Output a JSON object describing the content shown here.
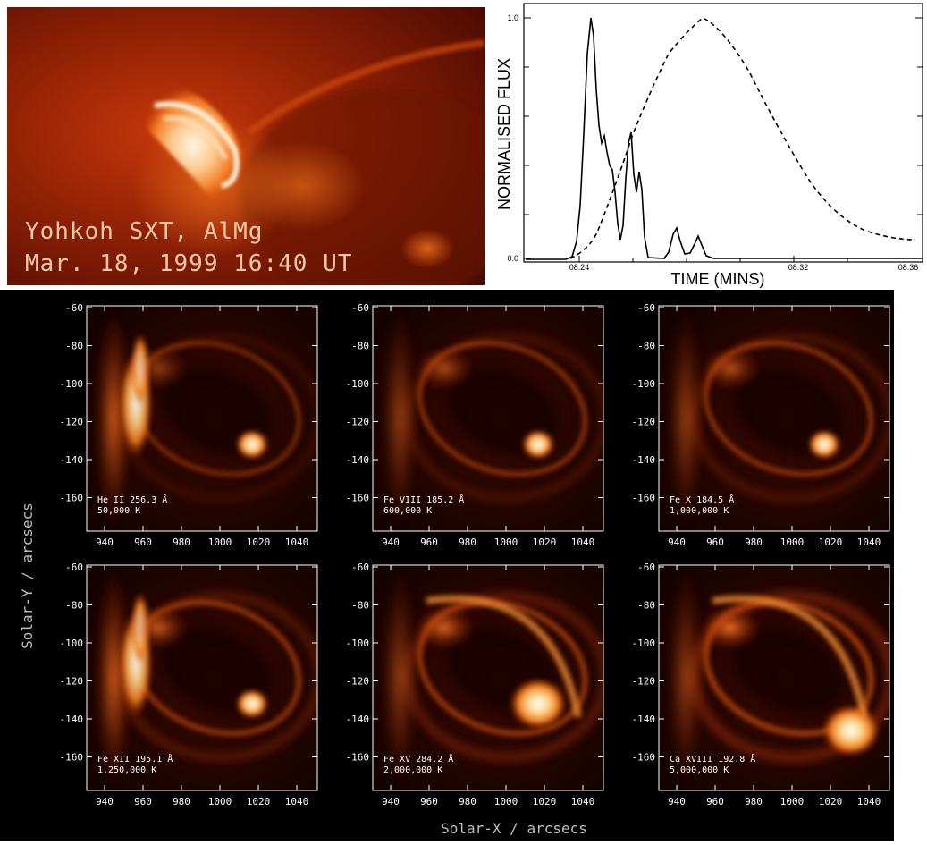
{
  "sxt": {
    "line1": "Yohkoh SXT, AlMg",
    "line2": "Mar. 18, 1999 16:40 UT"
  },
  "lightcurve": {
    "ylabel": "NORMALISED FLUX",
    "xlabel": "TIME (MINS)",
    "yticks": [
      "1.0",
      "0.0"
    ],
    "xticks": [
      "08:24",
      "08:32",
      "08:36"
    ]
  },
  "cds": {
    "ylabel": "Solar-Y / arcsecs",
    "xlabel": "Solar-X / arcsecs",
    "yticks": [
      "-60",
      "-80",
      "-100",
      "-120",
      "-140",
      "-160"
    ],
    "xticks": [
      "940",
      "960",
      "980",
      "1000",
      "1020",
      "1040"
    ],
    "panels": [
      {
        "line": "He II 256.3 Å",
        "temp": "50,000 K"
      },
      {
        "line": "Fe VIII 185.2 Å",
        "temp": "600,000 K"
      },
      {
        "line": "Fe X 184.5 Å",
        "temp": "1,000,000 K"
      },
      {
        "line": "Fe XII 195.1 Å",
        "temp": "1,250,000 K"
      },
      {
        "line": "Fe XV 284.2 Å",
        "temp": "2,000,000 K"
      },
      {
        "line": "Ca XVIII 192.8 Å",
        "temp": "5,000,000 K"
      }
    ]
  }
}
